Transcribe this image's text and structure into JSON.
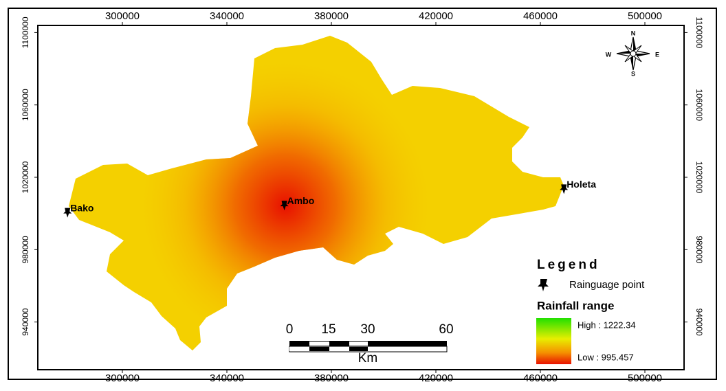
{
  "map": {
    "x_ticks": [
      300000,
      340000,
      380000,
      420000,
      460000,
      500000
    ],
    "y_ticks": [
      1100000,
      1060000,
      1020000,
      980000,
      940000
    ],
    "stations": [
      {
        "name": "Bako",
        "x": 279000,
        "y": 1000000
      },
      {
        "name": "Ambo",
        "x": 362000,
        "y": 1004000
      },
      {
        "name": "Holeta",
        "x": 469000,
        "y": 1013000
      }
    ],
    "compass": {
      "n": "N",
      "e": "E",
      "s": "S",
      "w": "W"
    },
    "scale_bar": {
      "ticks": [
        0,
        15,
        30,
        60
      ],
      "unit": "Km"
    },
    "legend": {
      "title": "Legend",
      "point_label": "Rainguage point",
      "range_title": "Rainfall range",
      "high": "High : 1222.34",
      "low": "Low : 995.457"
    }
  }
}
